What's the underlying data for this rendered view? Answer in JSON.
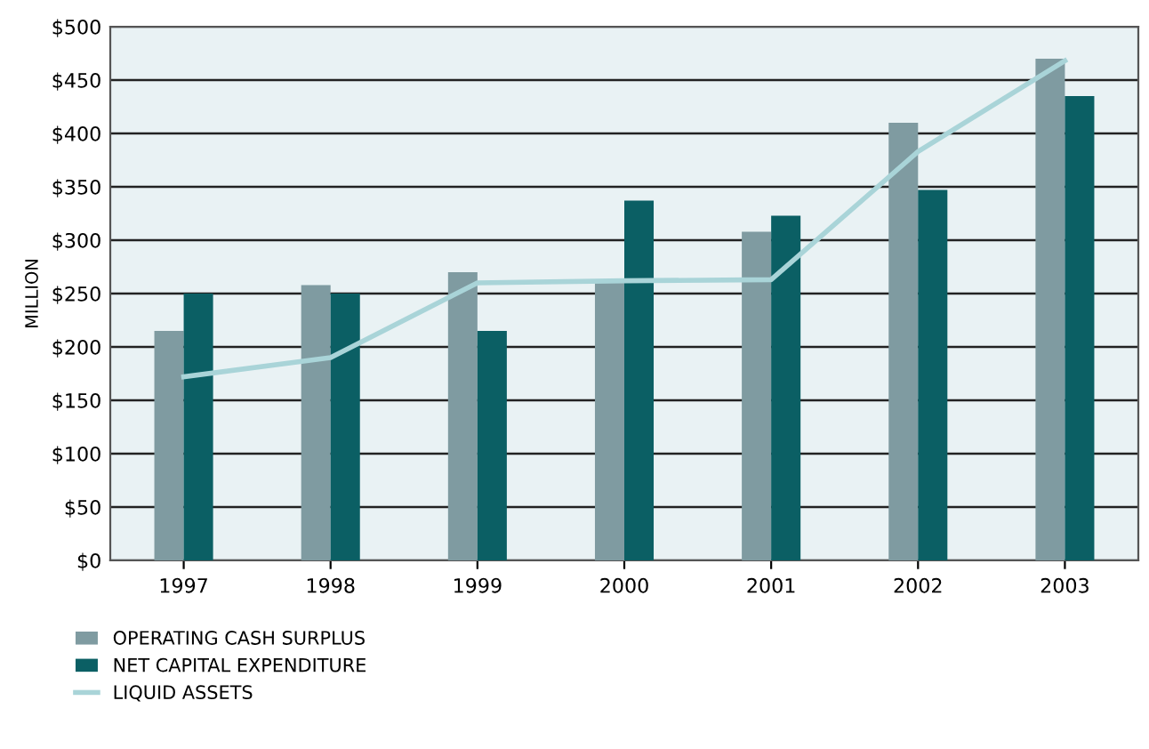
{
  "chart_data": {
    "type": "bar",
    "ylabel": "MILLION",
    "categories": [
      "1997",
      "1998",
      "1999",
      "2000",
      "2001",
      "2002",
      "2003"
    ],
    "series": [
      {
        "name": "OPERATING CASH SURPLUS",
        "color": "#7f9ba1",
        "values": [
          215,
          258,
          270,
          262,
          308,
          410,
          470
        ]
      },
      {
        "name": "NET CAPITAL EXPENDITURE",
        "color": "#0b5f64",
        "values": [
          250,
          250,
          215,
          337,
          323,
          347,
          435
        ]
      },
      {
        "name": "LIQUID ASSETS",
        "type": "line",
        "color": "#a9d4d8",
        "values": [
          172,
          190,
          260,
          262,
          263,
          383,
          468
        ]
      }
    ],
    "ylim": [
      0,
      500
    ],
    "yticks": [
      {
        "value": 0,
        "label": "$0"
      },
      {
        "value": 50,
        "label": "$50"
      },
      {
        "value": 100,
        "label": "$100"
      },
      {
        "value": 150,
        "label": "$150"
      },
      {
        "value": 200,
        "label": "$200"
      },
      {
        "value": 250,
        "label": "$250"
      },
      {
        "value": 300,
        "label": "$300"
      },
      {
        "value": 350,
        "label": "$350"
      },
      {
        "value": 400,
        "label": "$400"
      },
      {
        "value": 450,
        "label": "$450"
      },
      {
        "value": 500,
        "label": "$500"
      }
    ],
    "grid": "y",
    "legend": "bottom left",
    "marker": "none"
  }
}
